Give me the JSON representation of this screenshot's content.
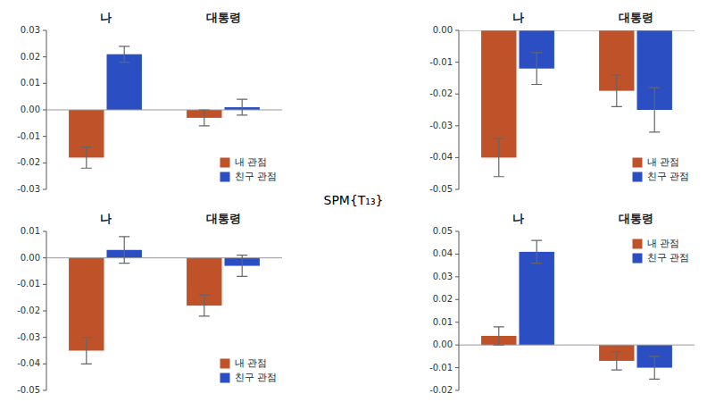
{
  "annotation": "SPM{T₁₃}",
  "chart_data": [
    {
      "type": "bar",
      "categories": [
        "나",
        "대통령"
      ],
      "series": [
        {
          "name": "내 관점",
          "color": "#C0522A",
          "values": [
            -0.018,
            -0.003
          ],
          "errors": [
            0.004,
            0.003
          ]
        },
        {
          "name": "친구 관점",
          "color": "#2B4FC2",
          "values": [
            0.021,
            0.001
          ],
          "errors": [
            0.003,
            0.003
          ]
        }
      ],
      "ylim": [
        -0.03,
        0.03
      ],
      "yticks": [
        -0.03,
        -0.02,
        -0.01,
        {
          "value": 0.0,
          "label": "0.00"
        },
        0.01,
        0.02,
        0.03
      ],
      "legend": "lower right"
    },
    {
      "type": "bar",
      "categories": [
        "나",
        "대통령"
      ],
      "series": [
        {
          "name": "내 관점",
          "color": "#C0522A",
          "values": [
            -0.035,
            -0.018
          ],
          "errors": [
            0.005,
            0.004
          ]
        },
        {
          "name": "친구 관점",
          "color": "#2B4FC2",
          "values": [
            0.003,
            -0.003
          ],
          "errors": [
            0.005,
            0.004
          ]
        }
      ],
      "ylim": [
        -0.05,
        0.01
      ],
      "yticks": [
        -0.05,
        -0.04,
        -0.03,
        -0.02,
        -0.01,
        {
          "value": 0.0,
          "label": "0.00"
        },
        0.01
      ],
      "legend": "lower right"
    },
    {
      "type": "bar",
      "categories": [
        "나",
        "대통령"
      ],
      "series": [
        {
          "name": "내 관점",
          "color": "#C0522A",
          "values": [
            -0.04,
            -0.019
          ],
          "errors": [
            0.006,
            0.005
          ]
        },
        {
          "name": "친구 관점",
          "color": "#2B4FC2",
          "values": [
            -0.012,
            -0.025
          ],
          "errors": [
            0.005,
            0.007
          ]
        }
      ],
      "ylim": [
        -0.05,
        0.0
      ],
      "yticks": [
        -0.05,
        -0.04,
        -0.03,
        -0.02,
        -0.01,
        {
          "value": 0.0,
          "label": "0.00"
        }
      ],
      "legend": "lower right"
    },
    {
      "type": "bar",
      "categories": [
        "나",
        "대통령"
      ],
      "series": [
        {
          "name": "내 관점",
          "color": "#C0522A",
          "values": [
            0.004,
            -0.007
          ],
          "errors": [
            0.004,
            0.004
          ]
        },
        {
          "name": "친구 관점",
          "color": "#2B4FC2",
          "values": [
            0.041,
            -0.01
          ],
          "errors": [
            0.005,
            0.005
          ]
        }
      ],
      "ylim": [
        -0.02,
        0.05
      ],
      "yticks": [
        -0.02,
        -0.01,
        {
          "value": 0.0,
          "label": "0.00"
        },
        0.01,
        0.02,
        0.03,
        0.04,
        0.05
      ],
      "legend": "upper right"
    }
  ]
}
